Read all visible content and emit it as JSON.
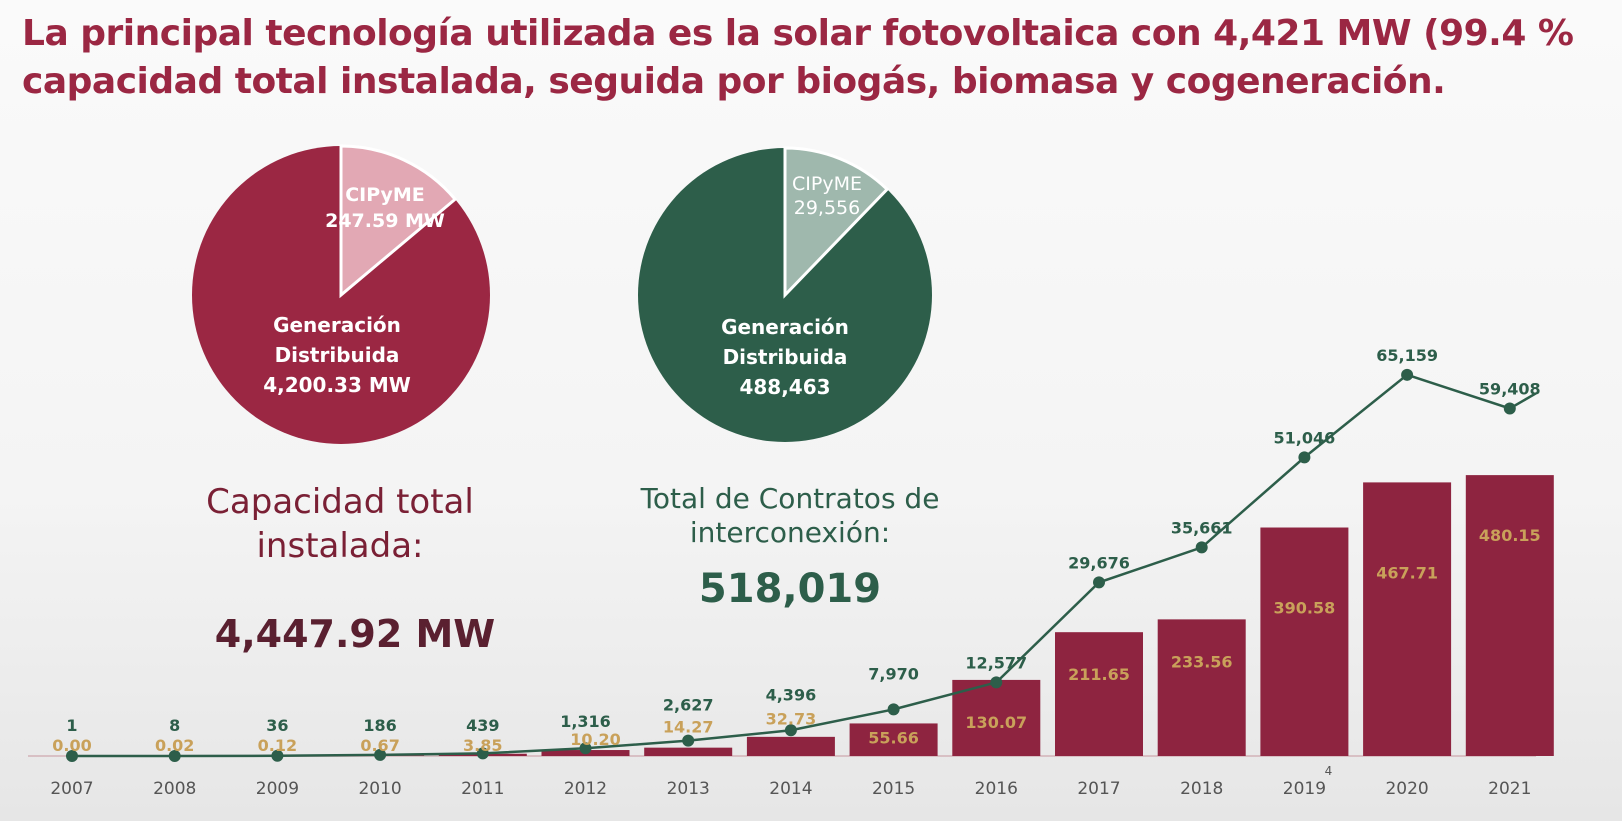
{
  "title": {
    "line1": "La principal tecnología utilizada es la solar fotovoltaica con 4,421 MW (99.4 %",
    "line2": "capacidad total instalada, seguida por biogás, biomasa y cogeneración."
  },
  "colors": {
    "title": "#9b2743",
    "bar": "#8e2440",
    "line": "#2d5e4a",
    "bar_label": "#c9a15a",
    "pie_red_light": "#e2a8b4",
    "pie_green_light": "#9fb8ad"
  },
  "capacity": {
    "label": "Capacidad total instalada:",
    "value": "4,447.92 MW"
  },
  "contracts": {
    "label": "Total de Contratos de interconexión:",
    "value": "518,019"
  },
  "chart_data": [
    {
      "type": "pie",
      "slices": [
        {
          "label": "CIPyME",
          "value_text": "247.59 MW",
          "value": 247.59,
          "color": "#e2a8b4"
        },
        {
          "label": "Generación Distribuida",
          "value_text": "4,200.33 MW",
          "value": 4200.33,
          "color": "#9b2743"
        }
      ]
    },
    {
      "type": "pie",
      "slices": [
        {
          "label": "CIPyME",
          "value_text": "29,556",
          "value": 29556,
          "color": "#9fb8ad"
        },
        {
          "label": "Generación Distribuida",
          "value_text": "488,463",
          "value": 488463,
          "color": "#2d5e4a"
        }
      ]
    },
    {
      "type": "bar+line",
      "categories": [
        "2007",
        "2008",
        "2009",
        "2010",
        "2011",
        "2012",
        "2013",
        "2014",
        "2015",
        "2016",
        "2017",
        "2018",
        "2019",
        "2020",
        "2021"
      ],
      "category_notes": {
        "2019": "4"
      },
      "series": [
        {
          "type": "bar",
          "values": [
            0.0,
            0.02,
            0.12,
            0.67,
            3.85,
            10.2,
            14.27,
            32.73,
            55.66,
            130.07,
            211.65,
            233.56,
            390.58,
            467.71,
            480.15
          ],
          "labels": [
            "0.00",
            "0.02",
            "0.12",
            "0.67",
            "3.85",
            "10.20",
            "14.27",
            "32.73",
            "55.66",
            "130.07",
            "211.65",
            "233.56",
            "390.58",
            "467.71",
            "480.15"
          ]
        },
        {
          "type": "line",
          "values": [
            1,
            8,
            36,
            186,
            439,
            1316,
            2627,
            4396,
            7970,
            12577,
            29676,
            35661,
            51046,
            65159,
            59408
          ],
          "labels": [
            "1",
            "8",
            "36",
            "186",
            "439",
            "1,316",
            "2,627",
            "4,396",
            "7,970",
            "12,577",
            "29,676",
            "35,661",
            "51,046",
            "65,159",
            "59,408"
          ]
        }
      ]
    }
  ]
}
